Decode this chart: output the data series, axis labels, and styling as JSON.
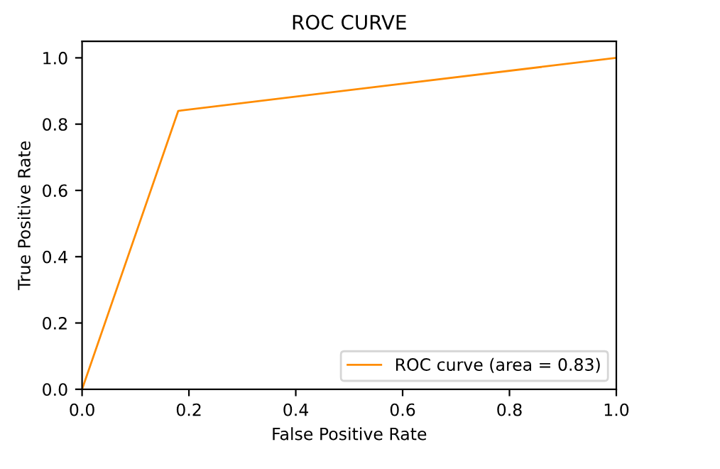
{
  "chart_data": {
    "type": "line",
    "title": "ROC CURVE",
    "xlabel": "False Positive Rate",
    "ylabel": "True Positive Rate",
    "x": [
      0,
      0.18,
      1
    ],
    "series": [
      {
        "name": "ROC curve (area = 0.83)",
        "color": "#ff8c00",
        "values": [
          0,
          0.84,
          1
        ]
      }
    ],
    "xlim": [
      0,
      1
    ],
    "ylim": [
      0,
      1.05
    ],
    "xticks": [
      {
        "value": 0,
        "label": "0.0"
      },
      0.2,
      0.4,
      0.6,
      0.8,
      {
        "value": 1,
        "label": "1.0"
      }
    ],
    "yticks": [
      {
        "value": 0,
        "label": "0.0"
      },
      0.2,
      0.4,
      0.6,
      0.8,
      {
        "value": 1,
        "label": "1.0"
      }
    ],
    "legend": "lower right",
    "grid": false
  }
}
